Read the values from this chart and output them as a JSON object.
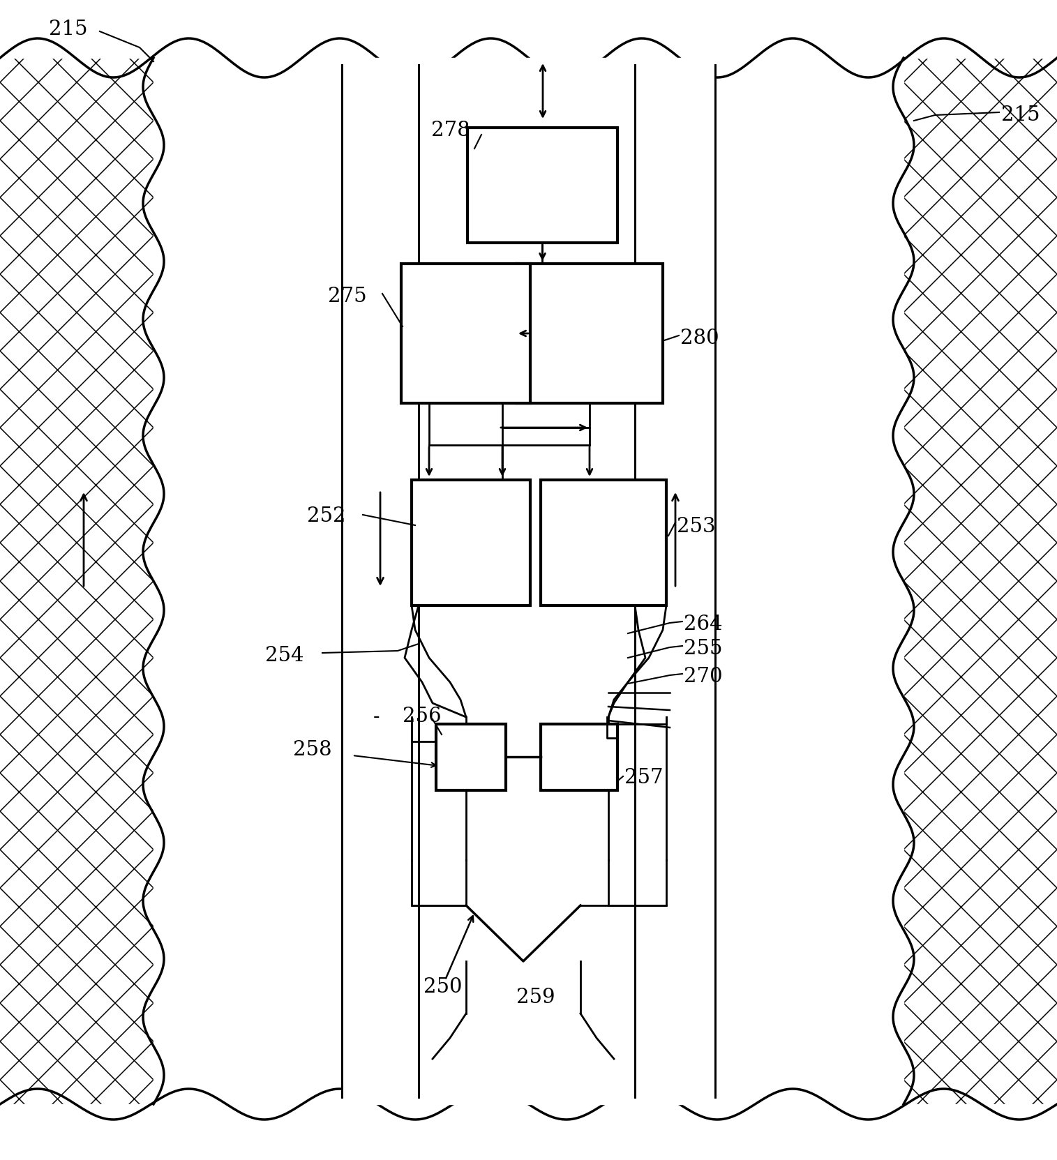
{
  "bg_color": "#ffffff",
  "line_color": "#000000",
  "fig_width": 15.15,
  "fig_height": 16.63,
  "labels": {
    "215_top": "215",
    "215_right": "215",
    "278": "278",
    "275": "275",
    "280": "280",
    "252": "252",
    "253": "253",
    "264": "264",
    "255": "255",
    "270": "270",
    "254": "254",
    "256": "256",
    "258": "258",
    "257": "257",
    "250": "250",
    "259": "259"
  }
}
